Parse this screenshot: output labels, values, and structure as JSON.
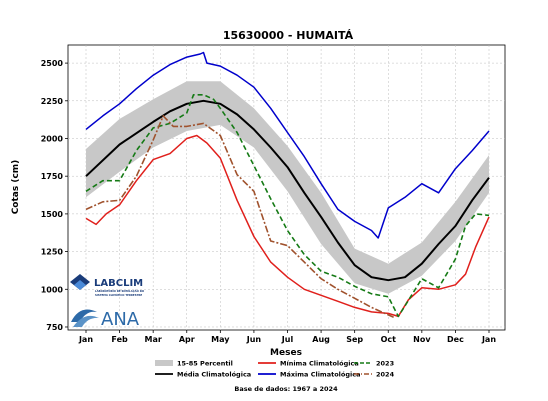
{
  "chart_data": {
    "type": "line",
    "title": "15630000 - HUMAITÁ",
    "xlabel": "Meses",
    "ylabel": "Cotas (cm)",
    "x_ticks": [
      "Jan",
      "Feb",
      "Mar",
      "Apr",
      "May",
      "Jun",
      "Jul",
      "Aug",
      "Sep",
      "Oct",
      "Nov",
      "Dec",
      "Jan"
    ],
    "xlim": [
      0,
      12.6
    ],
    "ylim": [
      730,
      2620
    ],
    "y_ticks": [
      750,
      1000,
      1250,
      1500,
      1750,
      2000,
      2250,
      2500
    ],
    "grid": true,
    "legend_position": "bottom",
    "base_text": "Base de dados: 1967 a 2024",
    "band": {
      "name": "15-85 Percentil",
      "color": "#c8c8c8",
      "x": [
        0,
        1,
        2,
        3,
        4,
        5,
        6,
        7,
        8,
        9,
        10,
        11,
        12
      ],
      "lower": [
        1610,
        1780,
        1940,
        2050,
        2090,
        1940,
        1650,
        1300,
        1040,
        970,
        1090,
        1320,
        1640
      ],
      "upper": [
        1930,
        2130,
        2260,
        2380,
        2380,
        2200,
        1950,
        1640,
        1270,
        1170,
        1310,
        1580,
        1890
      ]
    },
    "series": [
      {
        "name": "Média Climatológica",
        "color": "#000000",
        "dash": "none",
        "width": 2,
        "x": [
          0,
          1,
          2,
          2.5,
          3,
          3.5,
          4,
          4.5,
          5,
          5.5,
          6,
          6.5,
          7,
          7.5,
          8,
          8.5,
          9,
          9.5,
          10,
          10.5,
          11,
          11.5,
          12
        ],
        "y": [
          1750,
          1960,
          2110,
          2180,
          2230,
          2250,
          2230,
          2160,
          2060,
          1940,
          1810,
          1640,
          1480,
          1310,
          1160,
          1080,
          1060,
          1080,
          1170,
          1300,
          1420,
          1590,
          1740
        ]
      },
      {
        "name": "Mínima Climatológica",
        "color": "#e0201c",
        "dash": "none",
        "width": 1.5,
        "x": [
          0,
          0.3,
          0.6,
          1,
          1.5,
          2,
          2.5,
          3,
          3.3,
          3.6,
          4,
          4.5,
          5,
          5.5,
          6,
          6.5,
          7,
          7.5,
          8,
          8.5,
          9,
          9.3,
          9.6,
          10,
          10.5,
          11,
          11.3,
          11.6,
          12
        ],
        "y": [
          1470,
          1430,
          1500,
          1560,
          1720,
          1860,
          1900,
          2000,
          2020,
          1970,
          1870,
          1590,
          1350,
          1180,
          1080,
          1000,
          960,
          920,
          880,
          850,
          840,
          820,
          930,
          1010,
          1000,
          1030,
          1100,
          1280,
          1480
        ]
      },
      {
        "name": "Máxima Climatológica",
        "color": "#0000cc",
        "dash": "none",
        "width": 1.5,
        "x": [
          0,
          0.5,
          1,
          1.5,
          2,
          2.5,
          3,
          3.4,
          3.5,
          3.6,
          4,
          4.5,
          5,
          5.5,
          6,
          6.5,
          7,
          7.5,
          8,
          8.5,
          8.7,
          9,
          9.5,
          10,
          10.5,
          11,
          11.5,
          12
        ],
        "y": [
          2060,
          2150,
          2230,
          2330,
          2420,
          2490,
          2540,
          2560,
          2570,
          2500,
          2480,
          2420,
          2340,
          2200,
          2040,
          1880,
          1700,
          1530,
          1450,
          1390,
          1340,
          1540,
          1610,
          1700,
          1640,
          1800,
          1920,
          2050
        ]
      },
      {
        "name": "2023",
        "color": "#157a15",
        "dash": "5,3",
        "width": 1.6,
        "x": [
          0,
          0.5,
          1,
          1.5,
          2,
          2.5,
          3,
          3.2,
          3.5,
          3.8,
          4,
          4.5,
          5,
          5.5,
          6,
          6.5,
          7,
          7.5,
          8,
          8.5,
          9,
          9.3,
          9.5,
          10,
          10.5,
          11,
          11.3,
          11.6,
          12
        ],
        "y": [
          1650,
          1720,
          1720,
          1920,
          2070,
          2100,
          2170,
          2290,
          2290,
          2260,
          2200,
          2040,
          1820,
          1600,
          1390,
          1230,
          1120,
          1080,
          1020,
          970,
          950,
          820,
          890,
          1070,
          1010,
          1200,
          1420,
          1500,
          1490
        ]
      },
      {
        "name": "2024",
        "color": "#a0522d",
        "dash": "7,2,2,2",
        "width": 1.6,
        "x": [
          0,
          0.5,
          1,
          1.5,
          2,
          2.3,
          2.6,
          3,
          3.5,
          4,
          4.5,
          5,
          5.5,
          6,
          6.5,
          7,
          7.5,
          8,
          8.5,
          9,
          9.2
        ],
        "y": [
          1530,
          1580,
          1590,
          1750,
          1990,
          2150,
          2080,
          2080,
          2100,
          2020,
          1760,
          1650,
          1320,
          1290,
          1180,
          1070,
          1000,
          940,
          880,
          830,
          810
        ]
      }
    ]
  },
  "legend": {
    "items": [
      {
        "label": "15-85 Percentil",
        "kind": "band",
        "color": "#c8c8c8"
      },
      {
        "label": "Média Climatológica",
        "kind": "line",
        "color": "#000000"
      },
      {
        "label": "Mínima Climatológica",
        "kind": "line",
        "color": "#e0201c"
      },
      {
        "label": "Máxima Climatológica",
        "kind": "line",
        "color": "#0000cc"
      },
      {
        "label": "2023",
        "kind": "dash",
        "color": "#157a15"
      },
      {
        "label": "2024",
        "kind": "dashdot",
        "color": "#a0522d"
      }
    ]
  },
  "logos": {
    "labclim_name": "LABCLIM",
    "labclim_sub1": "LABORATÓRIO DE SIMULAÇÃO DO",
    "labclim_sub2": "SISTEMA CLIMÁTICO TERRESTRE",
    "ana_name": "ANA",
    "labclim_color": "#1a3c7a",
    "ana_color": "#2d6aa8"
  }
}
